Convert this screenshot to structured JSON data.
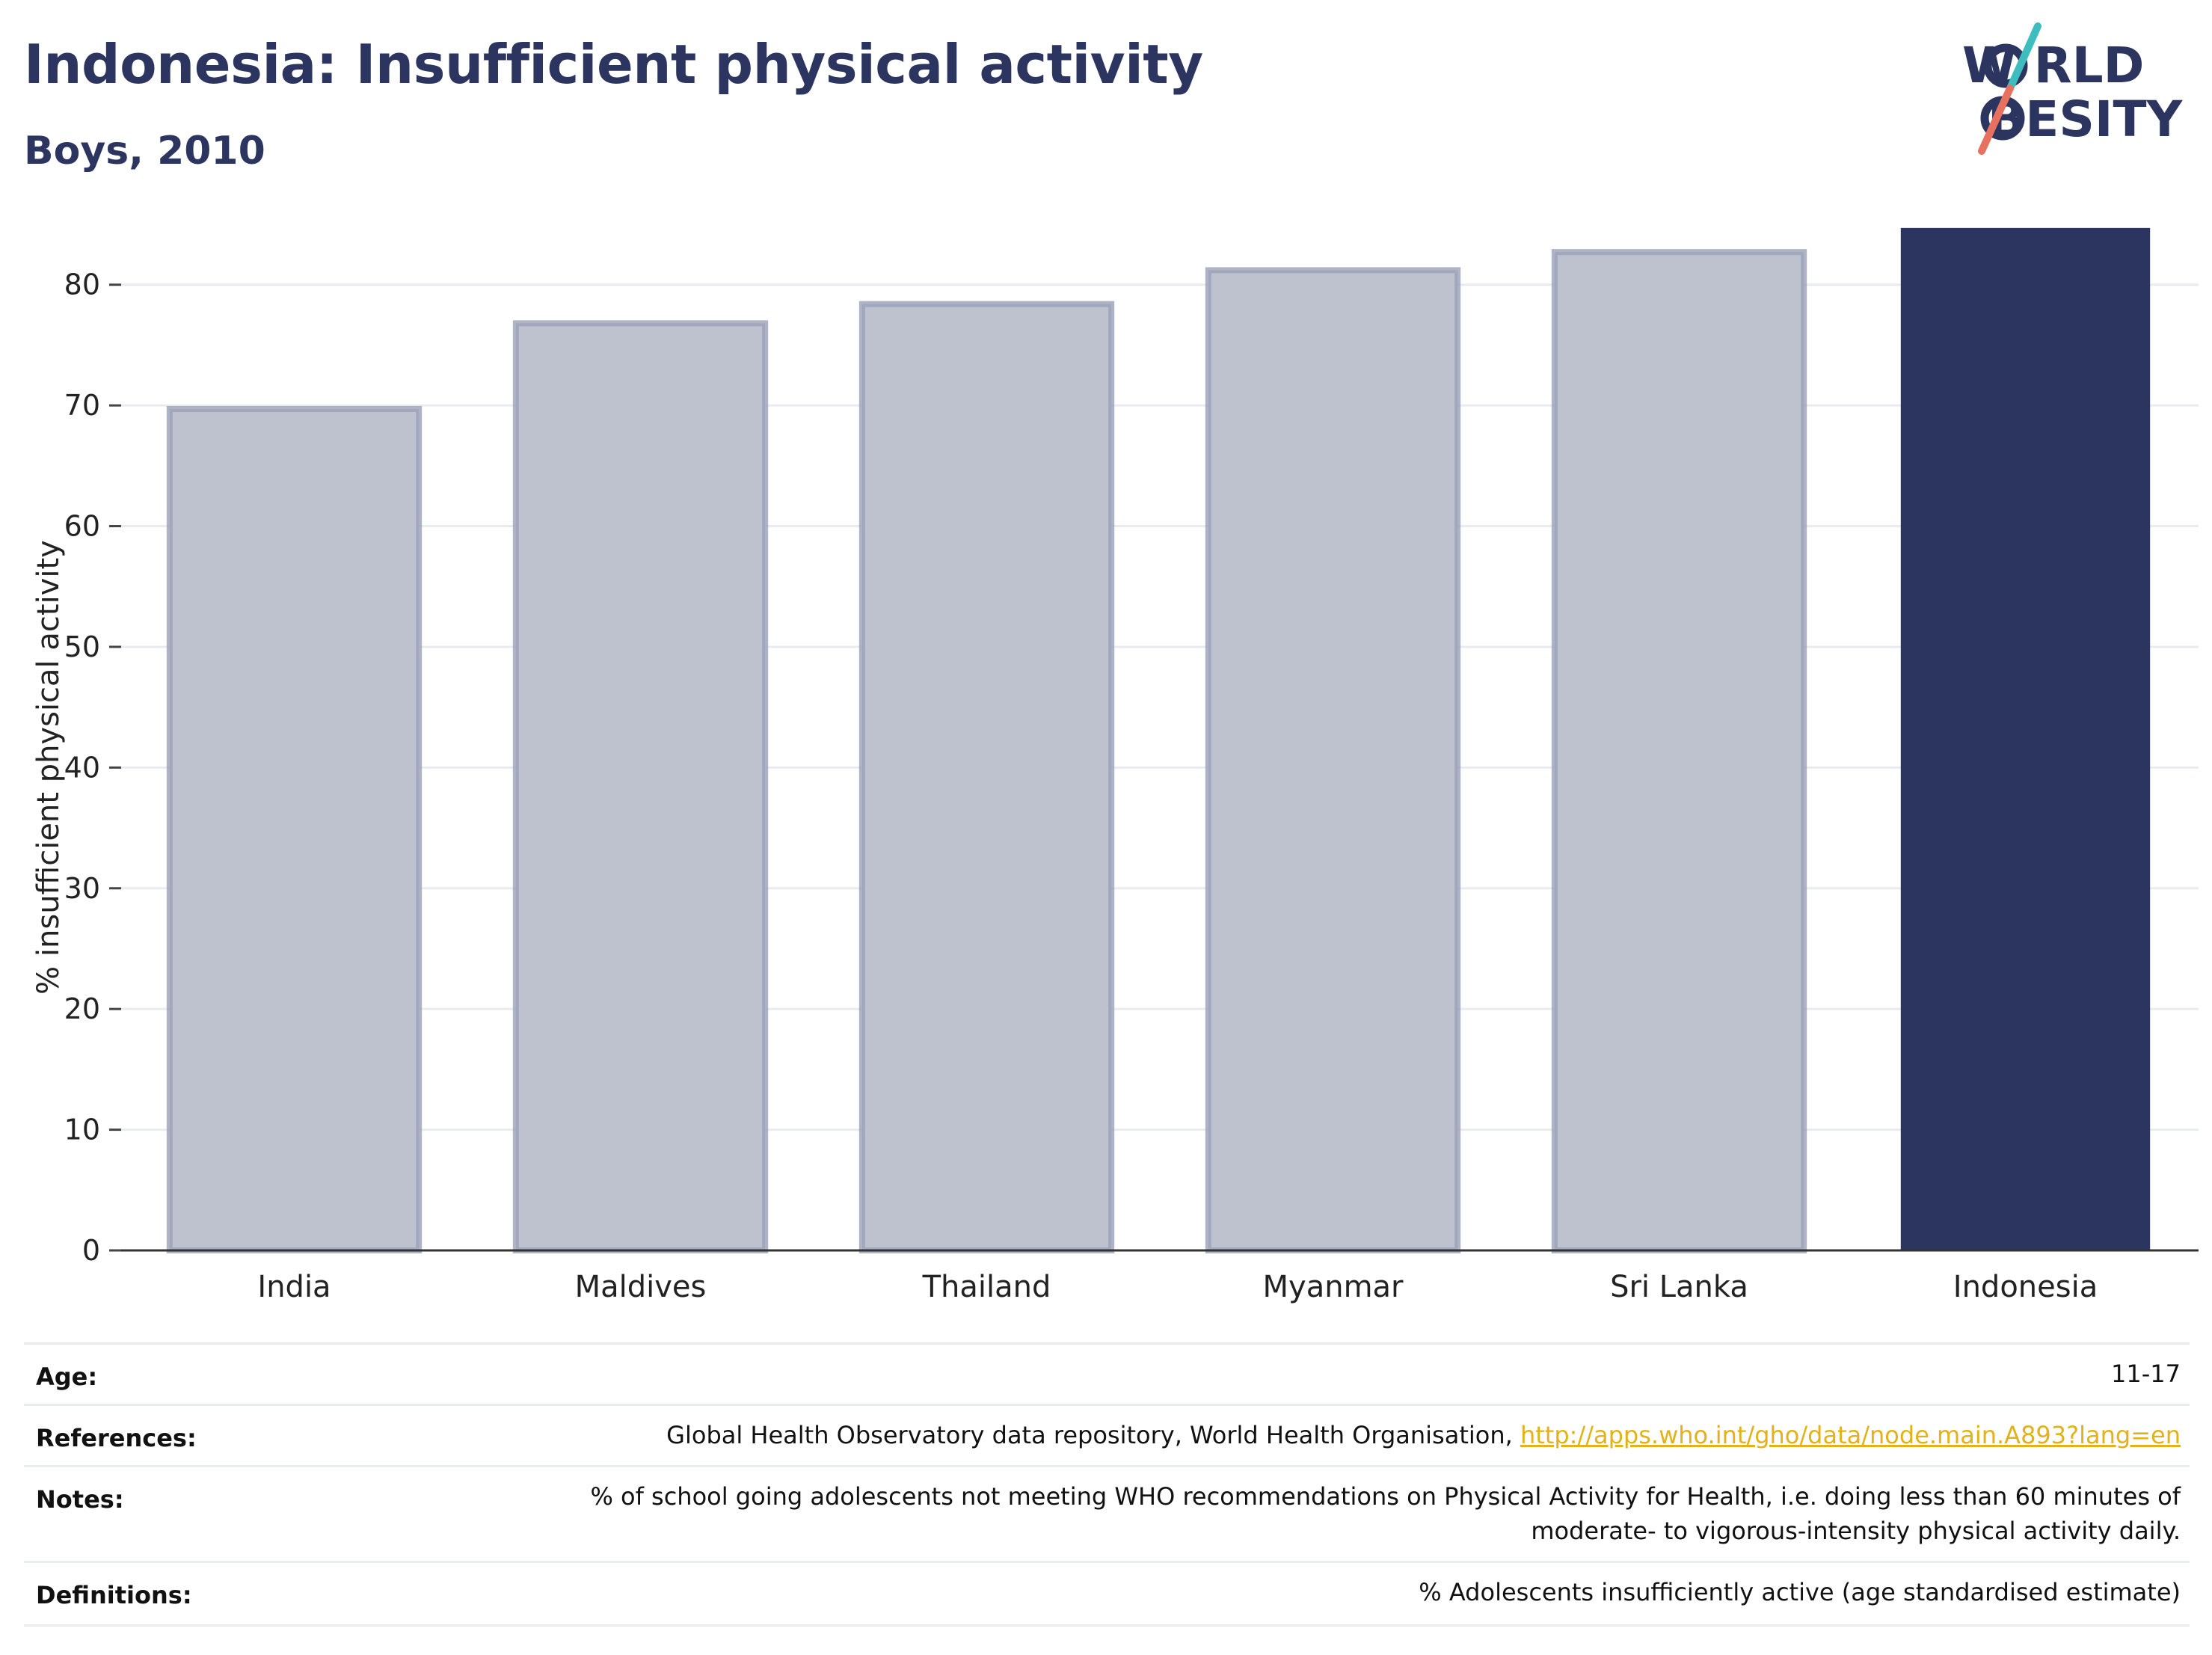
{
  "header": {
    "title": "Indonesia: Insufficient physical activity",
    "subtitle": "Boys, 2010"
  },
  "logo": {
    "line1": "W RLD",
    "line2": "BESITY",
    "colors": {
      "text": "#2b3560",
      "teal": "#3dbdbd",
      "coral": "#e8705f"
    }
  },
  "chart_data": {
    "type": "bar",
    "categories": [
      "India",
      "Maldives",
      "Thailand",
      "Myanmar",
      "Sri Lanka",
      "Indonesia"
    ],
    "values": [
      69.7,
      76.8,
      78.4,
      81.2,
      82.7,
      84.7
    ],
    "highlight": "Indonesia",
    "ylabel": "% insufficient physical activity",
    "ylim": [
      0,
      85
    ],
    "yticks": [
      0,
      10,
      20,
      30,
      40,
      50,
      60,
      70,
      80
    ],
    "grid": true,
    "colors": {
      "bar": "#bec2ce",
      "bar_edge": "#9aa0b8",
      "highlight": "#2b3560"
    }
  },
  "info": {
    "age": {
      "label": "Age:",
      "value": "11-17"
    },
    "references": {
      "label": "References:",
      "text": "Global Health Observatory data repository, World Health Organisation, ",
      "link": "http://apps.who.int/gho/data/node.main.A893?lang=en"
    },
    "notes": {
      "label": "Notes:",
      "line1": "% of school going adolescents not meeting WHO recommendations on Physical Activity for Health, i.e. doing less than 60 minutes of",
      "line2": "moderate- to vigorous-intensity physical activity daily."
    },
    "definitions": {
      "label": "Definitions:",
      "value": "% Adolescents insufficiently active (age standardised estimate)"
    }
  }
}
